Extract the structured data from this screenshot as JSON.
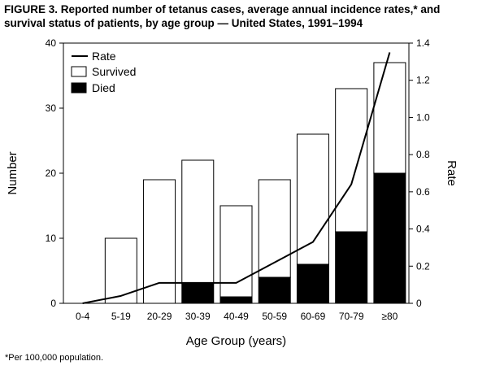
{
  "figure": {
    "title": "FIGURE 3. Reported number of tetanus cases, average annual incidence rates,* and survival status of patients, by age group — United States, 1991–1994",
    "footnote": "*Per 100,000 population."
  },
  "chart_data": {
    "type": "bar",
    "stacked": true,
    "categories": [
      "0-4",
      "5-19",
      "20-29",
      "30-39",
      "40-49",
      "50-59",
      "60-69",
      "70-79",
      "≥80"
    ],
    "series": [
      {
        "name": "Died",
        "values": [
          0,
          0,
          0,
          3,
          1,
          4,
          6,
          11,
          20
        ],
        "color": "#000000"
      },
      {
        "name": "Survived",
        "values": [
          0,
          10,
          19,
          19,
          14,
          15,
          20,
          22,
          17
        ],
        "color": "#ffffff"
      }
    ],
    "line_series": {
      "name": "Rate",
      "axis": "right",
      "values": [
        0,
        0.04,
        0.11,
        0.11,
        0.11,
        0.22,
        0.33,
        0.64,
        1.35
      ]
    },
    "xlabel": "Age Group (years)",
    "ylabel": "Number",
    "y2label": "Rate",
    "ylim": [
      0,
      40
    ],
    "yticks": [
      0,
      10,
      20,
      30,
      40
    ],
    "y2lim": [
      0,
      1.4
    ],
    "y2ticks": [
      "0",
      "0.2",
      "0.4",
      "0.6",
      "0.8",
      "1.0",
      "1.2",
      "1.4"
    ],
    "legend": {
      "placement": "top-left",
      "entries": [
        "Rate",
        "Survived",
        "Died"
      ]
    },
    "grid": false
  }
}
